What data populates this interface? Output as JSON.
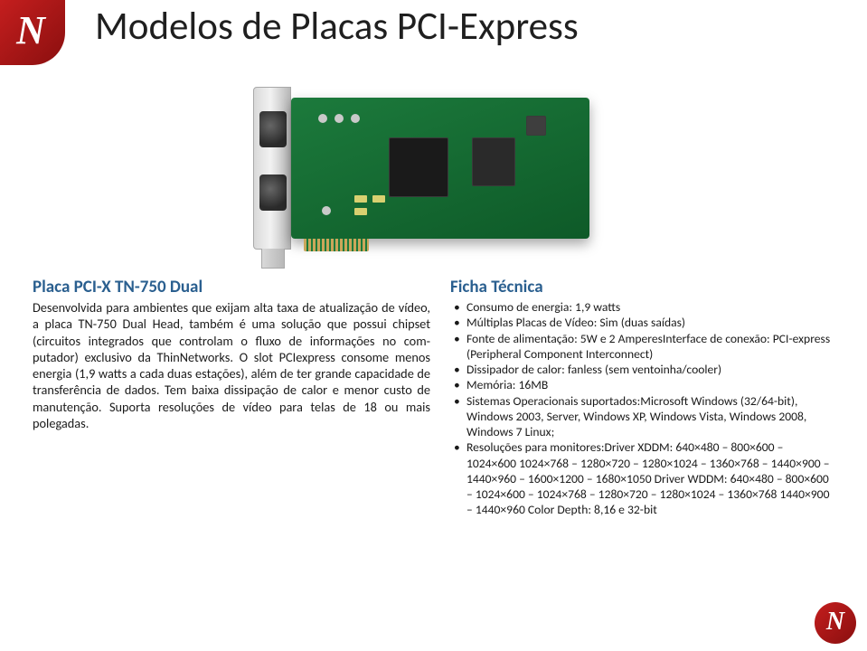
{
  "title": "Modelos de Placas PCI-Express",
  "logo_letter": "N",
  "colors": {
    "heading_blue": "#2a5f8f",
    "pcb_green_a": "#1c7a3c",
    "pcb_green_b": "#0e5a28",
    "logo_red_a": "#c41e1e",
    "logo_red_b": "#8a0f0f",
    "text": "#1a1a1a"
  },
  "product": {
    "heading": "Placa PCI-X TN-750 Dual",
    "description": "Desenvolvida para ambientes que exijam alta taxa de atualização de vídeo, a placa TN-750 Dual Head, também é uma solução que possui chipset (circuitos integrados que controlam o fluxo de informações no com-putador) exclusivo da ThinNetworks. O slot PCIexpress consome menos energia (1,9 watts a cada duas estações), além de ter grande capacidade de transferência de dados. Tem baixa dissipação de calor e menor custo de manutenção. Suporta resoluções de vídeo para telas de 18 ou mais polegadas."
  },
  "specs": {
    "title": "Ficha Técnica",
    "items": [
      "Consumo de energia: 1,9 watts",
      "Múltiplas Placas de Vídeo: Sim (duas saídas)",
      "Fonte de alimentação: 5W e 2 AmperesInterface de conexão: PCI-express (Peripheral Component Interconnect)",
      "Dissipador de calor: fanless (sem ventoinha/cooler)",
      "Memória: 16MB",
      "Sistemas Operacionais suportados:Microsoft Windows (32/64-bit), Windows 2003, Server, Windows XP, Windows Vista, Windows 2008, Windows 7 Linux;",
      "Resoluções para monitores:Driver XDDM:   640×480 – 800×600 – 1024×600   1024×768 – 1280×720 – 1280×1024 – 1360×768   – 1440×900   – 1440×960 – 1600×1200 – 1680×1050   Driver WDDM: 640×480 – 800×600 – 1024×600 – 1024×768 – 1280×720 – 1280×1024 – 1360×768   1440×900 – 1440×960   Color Depth: 8,16 e 32-bit"
    ]
  }
}
